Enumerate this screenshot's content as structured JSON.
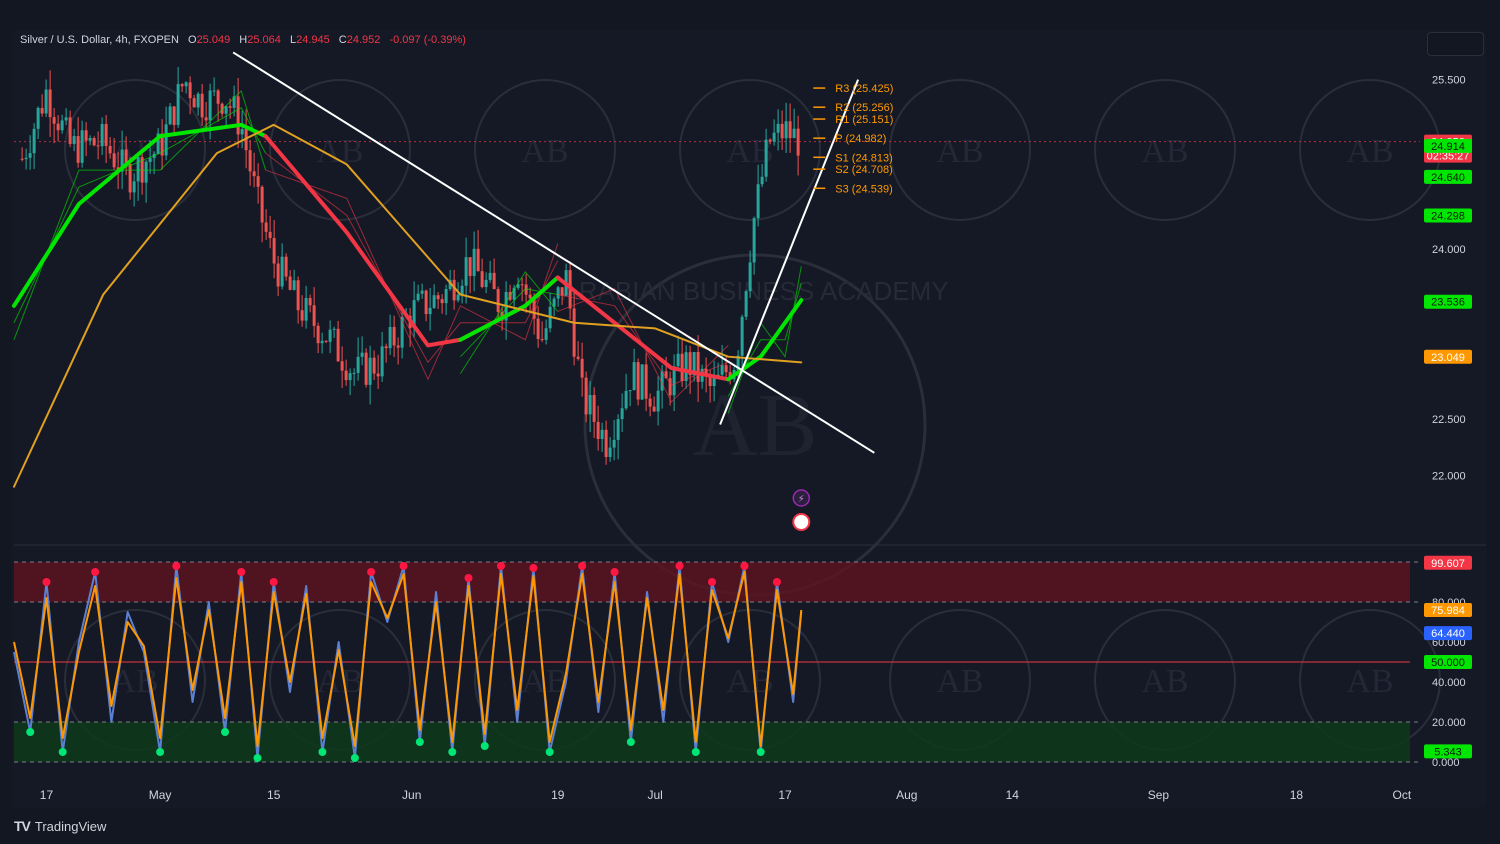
{
  "header": {
    "symbol": "Silver / U.S. Dollar, 4h, FXOPEN",
    "open_label": "O",
    "open": "25.049",
    "high_label": "H",
    "high": "25.064",
    "low_label": "L",
    "low": "24.945",
    "close_label": "C",
    "close": "24.952",
    "change": "-0.097 (-0.39%)"
  },
  "brand": {
    "name": "TradingView",
    "logo": "TV"
  },
  "watermark": {
    "text": "ARABIAN BUSINESS ACADEMY",
    "monogram": "AB"
  },
  "colors": {
    "background": "#131722",
    "grid_dashed": "#9598a1",
    "text": "#d1d4dc",
    "pivot": "#ff9800",
    "bull_green": "#00e600",
    "bear_red": "#f23645",
    "slow_ma": "#e0a020",
    "stoch_k": "#5b7fd1",
    "stoch_d": "#ff9800",
    "overbought_zone": "#5a1420",
    "oversold_zone": "#0d3a1a"
  },
  "chart_data": [
    {
      "type": "line",
      "title": "Silver / U.S. Dollar, 4h, FXOPEN",
      "x_ticks": [
        "17",
        "May",
        "15",
        "Jun",
        "19",
        "Jul",
        "17",
        "Aug",
        "14",
        "Sep",
        "18",
        "Oct"
      ],
      "x_tick_dates": [
        "2023-04-17",
        "2023-05-01",
        "2023-05-15",
        "2023-06-01",
        "2023-06-19",
        "2023-07-01",
        "2023-07-17",
        "2023-08-01",
        "2023-08-14",
        "2023-09-01",
        "2023-09-18",
        "2023-10-01"
      ],
      "y_ticks": [
        "25.500",
        "24.000",
        "22.500",
        "22.000"
      ],
      "ylim": [
        21.5,
        25.85
      ],
      "xlim": [
        "2023-04-13",
        "2023-10-02"
      ],
      "grid": false,
      "series": [
        {
          "style": "candles",
          "x": [
            "2023-04-14",
            "2023-04-17",
            "2023-04-20",
            "2023-04-24",
            "2023-04-27",
            "2023-05-01",
            "2023-05-04",
            "2023-05-06",
            "2023-05-09",
            "2023-05-11",
            "2023-05-13",
            "2023-05-15",
            "2023-05-18",
            "2023-05-22",
            "2023-05-25",
            "2023-05-28",
            "2023-06-01",
            "2023-06-05",
            "2023-06-08",
            "2023-06-12",
            "2023-06-14",
            "2023-06-17",
            "2023-06-20",
            "2023-06-22",
            "2023-06-25",
            "2023-06-28",
            "2023-07-01",
            "2023-07-05",
            "2023-07-08",
            "2023-07-11",
            "2023-07-13",
            "2023-07-15",
            "2023-07-17",
            "2023-07-19"
          ],
          "values": [
            24.8,
            25.4,
            24.9,
            24.95,
            24.65,
            24.9,
            25.5,
            25.3,
            25.35,
            25.1,
            24.4,
            23.9,
            23.5,
            23.2,
            22.9,
            23.0,
            23.45,
            23.6,
            23.9,
            23.5,
            23.85,
            23.2,
            23.75,
            22.7,
            22.3,
            22.9,
            22.7,
            23.0,
            22.75,
            23.05,
            24.2,
            24.95,
            25.05,
            24.95
          ]
        },
        {
          "style": "moving-average",
          "color": "bull_green",
          "x": [
            "2023-04-13",
            "2023-04-21",
            "2023-05-01",
            "2023-05-11",
            "2023-05-14"
          ],
          "values": [
            23.5,
            24.4,
            25.0,
            25.1,
            25.0
          ]
        },
        {
          "style": "moving-average",
          "color": "bear_red",
          "x": [
            "2023-05-14",
            "2023-05-24",
            "2023-06-03",
            "2023-06-07",
            "2023-06-15",
            "2023-06-19"
          ],
          "values": [
            25.0,
            24.15,
            23.15,
            23.2,
            23.5,
            23.75
          ]
        },
        {
          "style": "moving-average",
          "color": "bull_green",
          "x": [
            "2023-06-07",
            "2023-06-15",
            "2023-06-19"
          ],
          "values": [
            23.2,
            23.5,
            23.75
          ]
        },
        {
          "style": "moving-average",
          "color": "bear_red",
          "x": [
            "2023-06-19",
            "2023-06-26",
            "2023-07-03",
            "2023-07-10"
          ],
          "values": [
            23.75,
            23.35,
            22.95,
            22.85
          ]
        },
        {
          "style": "moving-average",
          "color": "bull_green",
          "x": [
            "2023-07-10",
            "2023-07-14",
            "2023-07-17",
            "2023-07-19"
          ],
          "values": [
            22.85,
            23.05,
            23.35,
            23.55
          ]
        },
        {
          "style": "moving-average",
          "color": "slow_ma",
          "x": [
            "2023-04-13",
            "2023-04-24",
            "2023-05-08",
            "2023-05-15",
            "2023-05-24",
            "2023-06-07",
            "2023-06-21",
            "2023-07-01",
            "2023-07-10",
            "2023-07-19"
          ],
          "values": [
            21.9,
            23.6,
            24.85,
            25.1,
            24.75,
            23.6,
            23.35,
            23.3,
            23.05,
            23.0
          ]
        }
      ],
      "trendlines": [
        {
          "from": [
            "2023-05-10",
            25.74
          ],
          "to": [
            "2023-07-28",
            22.2
          ]
        },
        {
          "from": [
            "2023-07-09",
            22.45
          ],
          "to": [
            "2023-07-26",
            25.5
          ]
        }
      ],
      "pivot_levels": [
        {
          "label": "R3",
          "value": 25.425
        },
        {
          "label": "R2",
          "value": 25.256
        },
        {
          "label": "R1",
          "value": 25.151
        },
        {
          "label": "P",
          "value": 24.982
        },
        {
          "label": "S1",
          "value": 24.813
        },
        {
          "label": "S2",
          "value": 24.708
        },
        {
          "label": "S3",
          "value": 24.539
        }
      ],
      "price_tags": [
        {
          "value": 24.952,
          "label": "24.952",
          "sublabel": "02:35:27",
          "color": "bear_red"
        },
        {
          "value": 24.914,
          "label": "24.914",
          "color": "bull_green"
        },
        {
          "value": 24.64,
          "label": "24.640",
          "color": "bull_green"
        },
        {
          "value": 24.298,
          "label": "24.298",
          "color": "bull_green"
        },
        {
          "value": 23.536,
          "label": "23.536",
          "color": "bull_green"
        },
        {
          "value": 23.049,
          "label": "23.049",
          "color": "pivot"
        }
      ]
    },
    {
      "type": "line",
      "title": "",
      "ylim": [
        0,
        100
      ],
      "y_ticks": [
        "80.000",
        "60.000",
        "40.000",
        "20.000",
        "0.000"
      ],
      "overbought": 80,
      "oversold": 20,
      "midline": 50,
      "series": [
        {
          "color": "stoch_k",
          "x": [
            "2023-04-13",
            "2023-04-15",
            "2023-04-17",
            "2023-04-19",
            "2023-04-21",
            "2023-04-23",
            "2023-04-25",
            "2023-04-27",
            "2023-04-29",
            "2023-05-01",
            "2023-05-03",
            "2023-05-05",
            "2023-05-07",
            "2023-05-09",
            "2023-05-11",
            "2023-05-13",
            "2023-05-15",
            "2023-05-17",
            "2023-05-19",
            "2023-05-21",
            "2023-05-23",
            "2023-05-25",
            "2023-05-27",
            "2023-05-29",
            "2023-05-31",
            "2023-06-02",
            "2023-06-04",
            "2023-06-06",
            "2023-06-08",
            "2023-06-10",
            "2023-06-12",
            "2023-06-14",
            "2023-06-16",
            "2023-06-18",
            "2023-06-20",
            "2023-06-22",
            "2023-06-24",
            "2023-06-26",
            "2023-06-28",
            "2023-06-30",
            "2023-07-02",
            "2023-07-04",
            "2023-07-06",
            "2023-07-08",
            "2023-07-10",
            "2023-07-12",
            "2023-07-14",
            "2023-07-16",
            "2023-07-18",
            "2023-07-19"
          ],
          "values": [
            55,
            15,
            90,
            5,
            60,
            95,
            20,
            75,
            55,
            5,
            98,
            30,
            80,
            15,
            95,
            2,
            90,
            35,
            88,
            5,
            60,
            2,
            95,
            70,
            98,
            10,
            85,
            5,
            92,
            8,
            98,
            20,
            97,
            5,
            40,
            98,
            25,
            95,
            10,
            85,
            20,
            98,
            5,
            90,
            60,
            98,
            5,
            90,
            30,
            75
          ]
        },
        {
          "color": "stoch_d",
          "x": [
            "2023-04-13",
            "2023-04-15",
            "2023-04-17",
            "2023-04-19",
            "2023-04-21",
            "2023-04-23",
            "2023-04-25",
            "2023-04-27",
            "2023-04-29",
            "2023-05-01",
            "2023-05-03",
            "2023-05-05",
            "2023-05-07",
            "2023-05-09",
            "2023-05-11",
            "2023-05-13",
            "2023-05-15",
            "2023-05-17",
            "2023-05-19",
            "2023-05-21",
            "2023-05-23",
            "2023-05-25",
            "2023-05-27",
            "2023-05-29",
            "2023-05-31",
            "2023-06-02",
            "2023-06-04",
            "2023-06-06",
            "2023-06-08",
            "2023-06-10",
            "2023-06-12",
            "2023-06-14",
            "2023-06-16",
            "2023-06-18",
            "2023-06-20",
            "2023-06-22",
            "2023-06-24",
            "2023-06-26",
            "2023-06-28",
            "2023-06-30",
            "2023-07-02",
            "2023-07-04",
            "2023-07-06",
            "2023-07-08",
            "2023-07-10",
            "2023-07-12",
            "2023-07-14",
            "2023-07-16",
            "2023-07-18",
            "2023-07-19"
          ],
          "values": [
            60,
            22,
            82,
            12,
            55,
            88,
            28,
            70,
            58,
            12,
            92,
            36,
            76,
            22,
            90,
            8,
            85,
            40,
            84,
            12,
            56,
            8,
            90,
            72,
            94,
            16,
            80,
            10,
            88,
            14,
            94,
            26,
            93,
            10,
            44,
            94,
            30,
            90,
            16,
            82,
            26,
            94,
            10,
            86,
            62,
            95,
            8,
            86,
            34,
            76
          ]
        }
      ],
      "price_tags": [
        {
          "value": 99.607,
          "label": "99.607",
          "color": "bear_red"
        },
        {
          "value": 75.984,
          "label": "75.984",
          "color": "pivot"
        },
        {
          "value": 64.44,
          "label": "64.440",
          "color": "blue"
        },
        {
          "value": 50.0,
          "label": "50.000",
          "color": "bull_green"
        },
        {
          "value": 5.343,
          "label": "5.343",
          "color": "bull_green"
        }
      ]
    }
  ]
}
